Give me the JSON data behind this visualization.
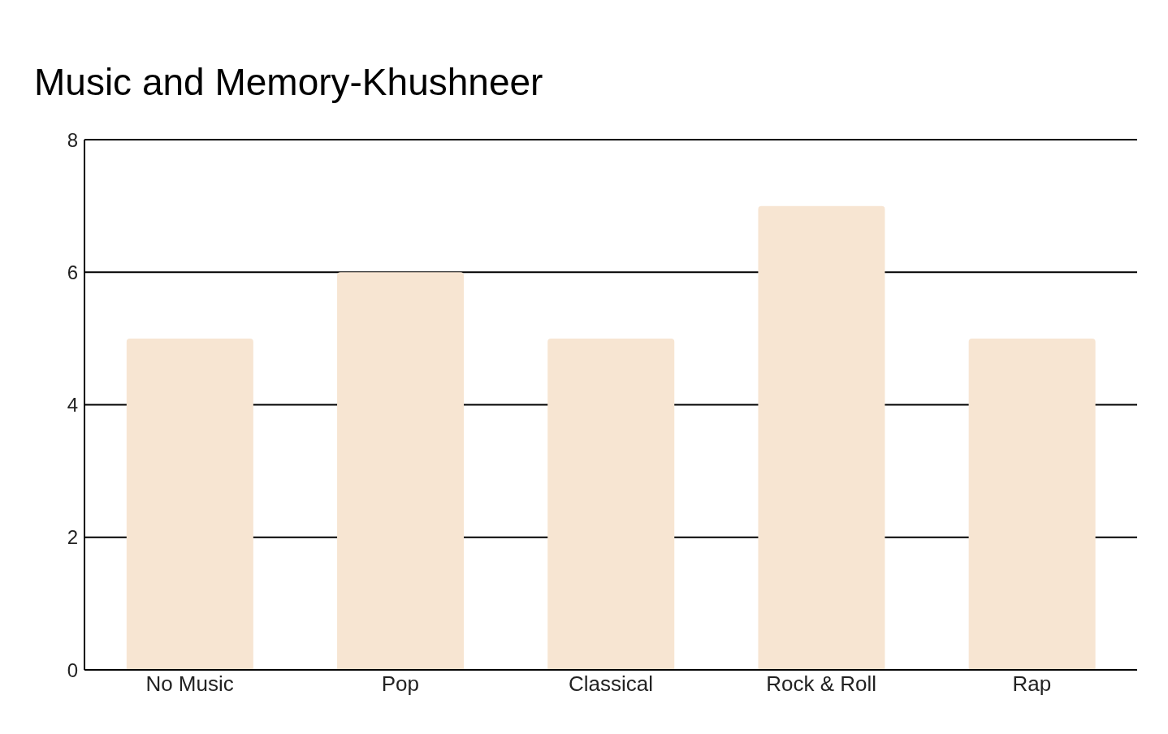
{
  "chart_data": {
    "type": "bar",
    "title": "Music and Memory-Khushneer",
    "categories": [
      "No Music",
      "Pop",
      "Classical",
      "Rock & Roll",
      "Rap"
    ],
    "values": [
      5,
      6,
      5,
      7,
      5
    ],
    "color": "#f7e5d2",
    "ylim": [
      0,
      8
    ],
    "yticks": [
      0,
      2,
      4,
      6,
      8
    ],
    "grid": "y"
  }
}
